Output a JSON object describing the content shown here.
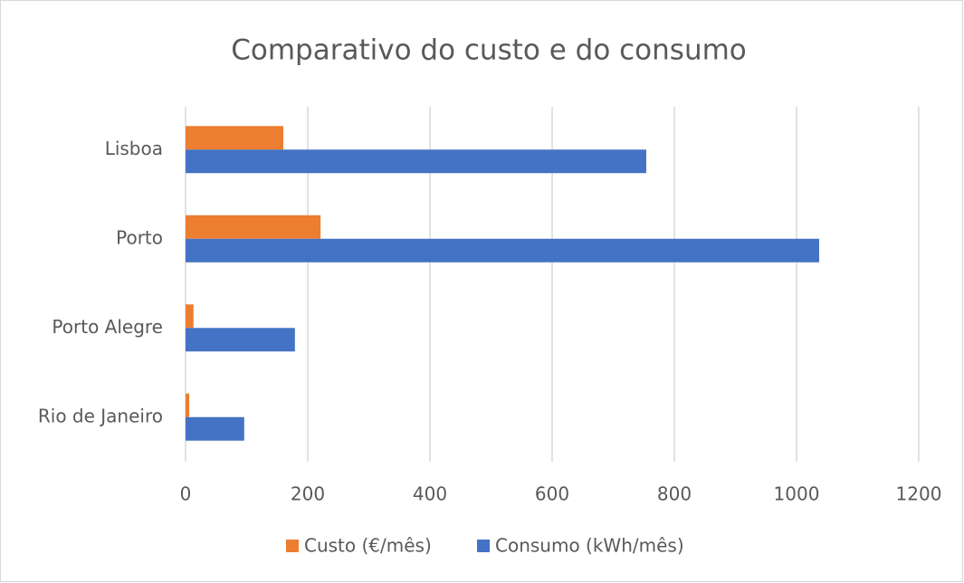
{
  "chart_data": {
    "type": "bar",
    "orientation": "horizontal",
    "title": "Comparativo do custo e do consumo",
    "categories": [
      "Lisboa",
      "Porto",
      "Porto Alegre",
      "Rio de Janeiro"
    ],
    "series": [
      {
        "name": "Custo (€/mês)",
        "color": "#ed7d31",
        "values": [
          160,
          221,
          13,
          6
        ]
      },
      {
        "name": "Consumo (kWh/mês)",
        "color": "#4472c4",
        "values": [
          754,
          1037,
          179,
          96
        ]
      }
    ],
    "xlim": [
      0,
      1200
    ],
    "xticks": [
      0,
      200,
      400,
      600,
      800,
      1000,
      1200
    ],
    "grid": true,
    "legend": "bottom"
  }
}
